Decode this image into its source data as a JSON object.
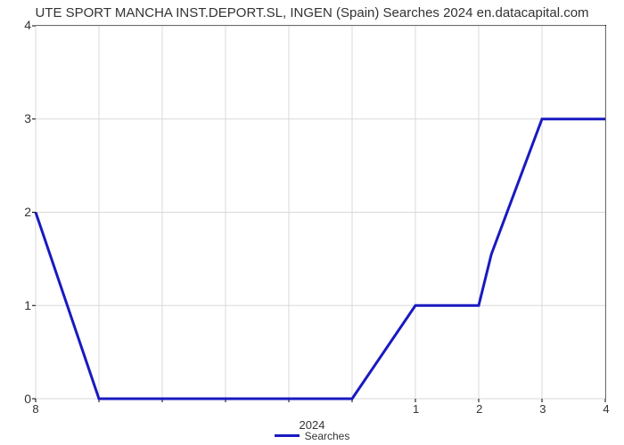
{
  "chart": {
    "type": "line",
    "title": "UTE SPORT MANCHA INST.DEPORT.SL, INGEN (Spain) Searches 2024 en.datacapital.com",
    "title_fontsize": 15,
    "title_color": "#333333",
    "background_color": "#ffffff",
    "plot_border_color": "#000000",
    "grid_color": "#d9d9d9",
    "xaxis": {
      "title": "2024",
      "ticks": [
        "8",
        "",
        "",
        "",
        "",
        "",
        "1",
        "2",
        "3",
        "4"
      ],
      "label_fontsize": 13,
      "min_index": 0,
      "max_index": 9
    },
    "yaxis": {
      "min": 0,
      "max": 4,
      "ticks": [
        0,
        1,
        2,
        3,
        4
      ],
      "label_fontsize": 14
    },
    "series": {
      "name": "Searches",
      "color": "#1919c1",
      "line_width": 3,
      "points": [
        {
          "x": 0,
          "y": 2
        },
        {
          "x": 1,
          "y": 0
        },
        {
          "x": 5,
          "y": 0
        },
        {
          "x": 6,
          "y": 1
        },
        {
          "x": 7,
          "y": 1
        },
        {
          "x": 7.2,
          "y": 1.55
        },
        {
          "x": 8,
          "y": 3
        },
        {
          "x": 9,
          "y": 3
        }
      ]
    },
    "legend": {
      "position": "bottom",
      "label": "Searches",
      "label_fontsize": 12
    }
  }
}
